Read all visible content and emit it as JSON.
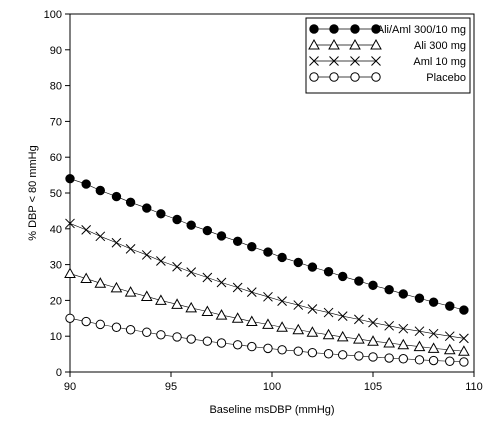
{
  "chart_data": {
    "type": "scatter",
    "xlabel": "Baseline msDBP (mmHg)",
    "ylabel": "% DBP  <  80  mmHg",
    "xlim": [
      90,
      110
    ],
    "ylim": [
      0,
      100
    ],
    "xticks": [
      90,
      95,
      100,
      105,
      110
    ],
    "yticks": [
      0,
      10,
      20,
      30,
      40,
      50,
      60,
      70,
      80,
      90,
      100
    ],
    "legend_position": "top-right",
    "x": [
      90.0,
      90.8,
      91.5,
      92.3,
      93.0,
      93.8,
      94.5,
      95.3,
      96.0,
      96.8,
      97.5,
      98.3,
      99.0,
      99.8,
      100.5,
      101.3,
      102.0,
      102.8,
      103.5,
      104.3,
      105.0,
      105.8,
      106.5,
      107.3,
      108.0,
      108.8,
      109.5
    ],
    "series": [
      {
        "name": "Ali/Aml 300/10 mg",
        "marker": "filled-circle",
        "values": [
          54,
          52.5,
          50.7,
          49,
          47.4,
          45.8,
          44.2,
          42.6,
          41,
          39.5,
          38,
          36.5,
          35,
          33.5,
          32,
          30.6,
          29.3,
          28,
          26.7,
          25.4,
          24.2,
          23,
          21.8,
          20.6,
          19.5,
          18.4,
          17.3
        ]
      },
      {
        "name": "Ali 300 mg",
        "marker": "open-triangle",
        "values": [
          27.5,
          26.1,
          24.8,
          23.5,
          22.3,
          21.1,
          20,
          18.9,
          17.9,
          16.9,
          15.9,
          15,
          14.1,
          13.3,
          12.5,
          11.8,
          11.1,
          10.4,
          9.8,
          9.2,
          8.6,
          8.1,
          7.6,
          7.1,
          6.6,
          6.2,
          5.8
        ]
      },
      {
        "name": "Aml 10 mg",
        "marker": "x",
        "values": [
          41.5,
          39.7,
          37.9,
          36.1,
          34.4,
          32.7,
          31,
          29.4,
          27.9,
          26.4,
          25,
          23.6,
          22.3,
          21,
          19.8,
          18.7,
          17.6,
          16.6,
          15.6,
          14.7,
          13.8,
          12.9,
          12.1,
          11.4,
          10.7,
          10,
          9.4
        ]
      },
      {
        "name": "Placebo",
        "marker": "open-circle",
        "values": [
          15,
          14.1,
          13.3,
          12.5,
          11.8,
          11.1,
          10.4,
          9.8,
          9.2,
          8.6,
          8.1,
          7.6,
          7.1,
          6.6,
          6.2,
          5.8,
          5.4,
          5.1,
          4.8,
          4.5,
          4.2,
          3.9,
          3.7,
          3.4,
          3.2,
          3,
          2.8
        ]
      }
    ]
  }
}
